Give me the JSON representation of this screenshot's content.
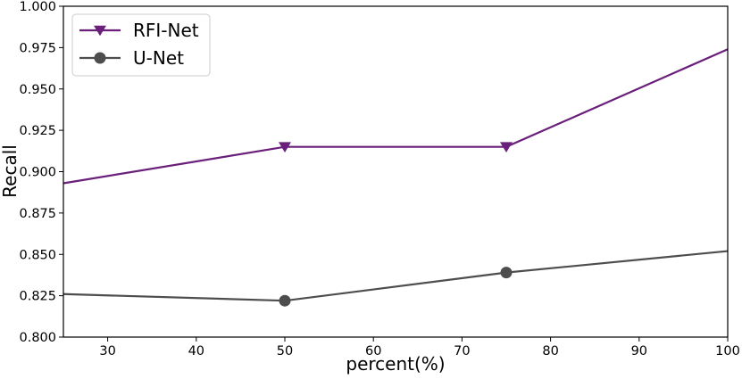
{
  "chart_data": {
    "type": "line",
    "x": [
      25,
      50,
      75,
      100
    ],
    "series": [
      {
        "name": "RFI-Net",
        "values": [
          0.893,
          0.915,
          0.915,
          0.974
        ],
        "color": "#6a1f7a",
        "marker": "triangle-down"
      },
      {
        "name": "U-Net",
        "values": [
          0.826,
          0.822,
          0.839,
          0.852
        ],
        "color": "#4d4d4d",
        "marker": "circle"
      }
    ],
    "xlabel": "percent(%)",
    "ylabel": "Recall",
    "xlim": [
      25,
      100
    ],
    "ylim": [
      0.8,
      1.0
    ],
    "xticks": [
      "30",
      "40",
      "50",
      "60",
      "70",
      "80",
      "90",
      "100"
    ],
    "yticks": [
      "0.800",
      "0.825",
      "0.850",
      "0.875",
      "0.900",
      "0.925",
      "0.950",
      "0.975",
      "1.000"
    ],
    "grid": false,
    "legend_position": "top-left"
  }
}
